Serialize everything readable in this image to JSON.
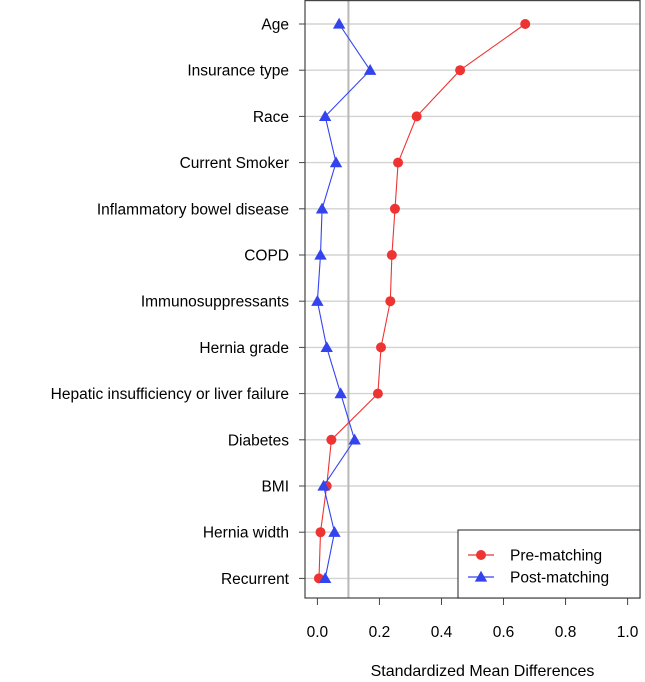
{
  "chart_data": {
    "type": "scatter",
    "title": "",
    "xlabel": "Standardized Mean Differences",
    "ylabel": "",
    "xlim": [
      -0.04,
      1.04
    ],
    "x_ticks": [
      0.0,
      0.2,
      0.4,
      0.6,
      0.8,
      1.0
    ],
    "x_tick_labels": [
      "0.0",
      "0.2",
      "0.4",
      "0.6",
      "0.8",
      "1.0"
    ],
    "reference_line": 0.1,
    "grid": "horizontal",
    "legend_position": "bottom-right",
    "categories": [
      "Age",
      "Insurance type",
      "Race",
      "Current Smoker",
      "Inflammatory bowel disease",
      "COPD",
      "Immunosuppressants",
      "Hernia grade",
      "Hepatic insufficiency or liver failure",
      "Diabetes",
      "BMI",
      "Hernia width",
      "Recurrent"
    ],
    "series": [
      {
        "name": "Pre-matching",
        "color": "#ee3333",
        "marker": "circle",
        "values": [
          0.67,
          0.46,
          0.32,
          0.26,
          0.25,
          0.24,
          0.235,
          0.205,
          0.195,
          0.045,
          0.03,
          0.01,
          0.005
        ]
      },
      {
        "name": "Post-matching",
        "color": "#3344ee",
        "marker": "triangle",
        "values": [
          0.07,
          0.17,
          0.025,
          0.06,
          0.015,
          0.01,
          0.0,
          0.03,
          0.075,
          0.12,
          0.02,
          0.055,
          0.025
        ]
      }
    ]
  }
}
